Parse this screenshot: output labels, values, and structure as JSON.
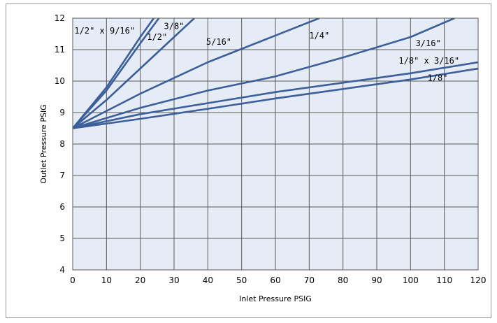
{
  "chart_data": {
    "type": "line",
    "title": "",
    "xlabel": "Inlet Pressure   PSIG",
    "ylabel": "Outlet Pressure  PSIG",
    "xlim": [
      0,
      120
    ],
    "ylim": [
      4,
      12
    ],
    "x_ticks": [
      "0",
      "10",
      "20",
      "30",
      "40",
      "50",
      "60",
      "70",
      "80",
      "90",
      "100",
      "110",
      "120"
    ],
    "y_ticks": [
      "4",
      "5",
      "6",
      "7",
      "8",
      "9",
      "10",
      "11",
      "12"
    ],
    "grid": true,
    "legend": "none (series labelled directly on lines)",
    "background_color": "#e6ecf6",
    "grid_color": "#5a5a5a",
    "line_color": "#3c5f9a",
    "series": [
      {
        "name": "1/2\" x 9/16\"",
        "x": [
          0,
          10,
          20,
          24
        ],
        "y": [
          8.5,
          9.8,
          11.4,
          12.0
        ]
      },
      {
        "name": "3/8\"",
        "x": [
          0,
          10,
          20,
          25.5
        ],
        "y": [
          8.5,
          9.7,
          11.2,
          12.0
        ]
      },
      {
        "name": "1/2\"",
        "x": [
          0,
          10,
          20,
          30,
          36
        ],
        "y": [
          8.5,
          9.4,
          10.4,
          11.4,
          12.0
        ]
      },
      {
        "name": "5/16\"",
        "x": [
          0,
          20,
          40,
          60,
          73
        ],
        "y": [
          8.5,
          9.6,
          10.6,
          11.45,
          12.0
        ]
      },
      {
        "name": "1/4\"",
        "x": [
          0,
          20,
          40,
          60,
          80,
          100,
          113
        ],
        "y": [
          8.5,
          9.15,
          9.7,
          10.15,
          10.75,
          11.4,
          12.0
        ]
      },
      {
        "name": "1/8\" x 3/16\"",
        "x": [
          0,
          20,
          40,
          60,
          80,
          100,
          120
        ],
        "y": [
          8.5,
          8.95,
          9.3,
          9.65,
          9.95,
          10.25,
          10.6
        ]
      },
      {
        "name": "1/8\"",
        "x": [
          0,
          20,
          40,
          60,
          80,
          100,
          120
        ],
        "y": [
          8.5,
          8.8,
          9.12,
          9.45,
          9.75,
          10.05,
          10.4
        ]
      }
    ],
    "labels": [
      {
        "text": "1/2\" x 9/16\"",
        "x": 0.5,
        "y": 11.6
      },
      {
        "text": "3/8\"",
        "x": 27,
        "y": 11.75
      },
      {
        "text": "1/2\"",
        "x": 22,
        "y": 11.4
      },
      {
        "text": "5/16\"",
        "x": 39.5,
        "y": 11.25
      },
      {
        "text": "1/4\"",
        "x": 70,
        "y": 11.45
      },
      {
        "text": "3/16\"",
        "x": 101.5,
        "y": 11.2
      },
      {
        "text": "1/8\" x 3/16\"",
        "x": 96.5,
        "y": 10.65
      },
      {
        "text": "1/8\"",
        "x": 105,
        "y": 10.1
      }
    ]
  }
}
